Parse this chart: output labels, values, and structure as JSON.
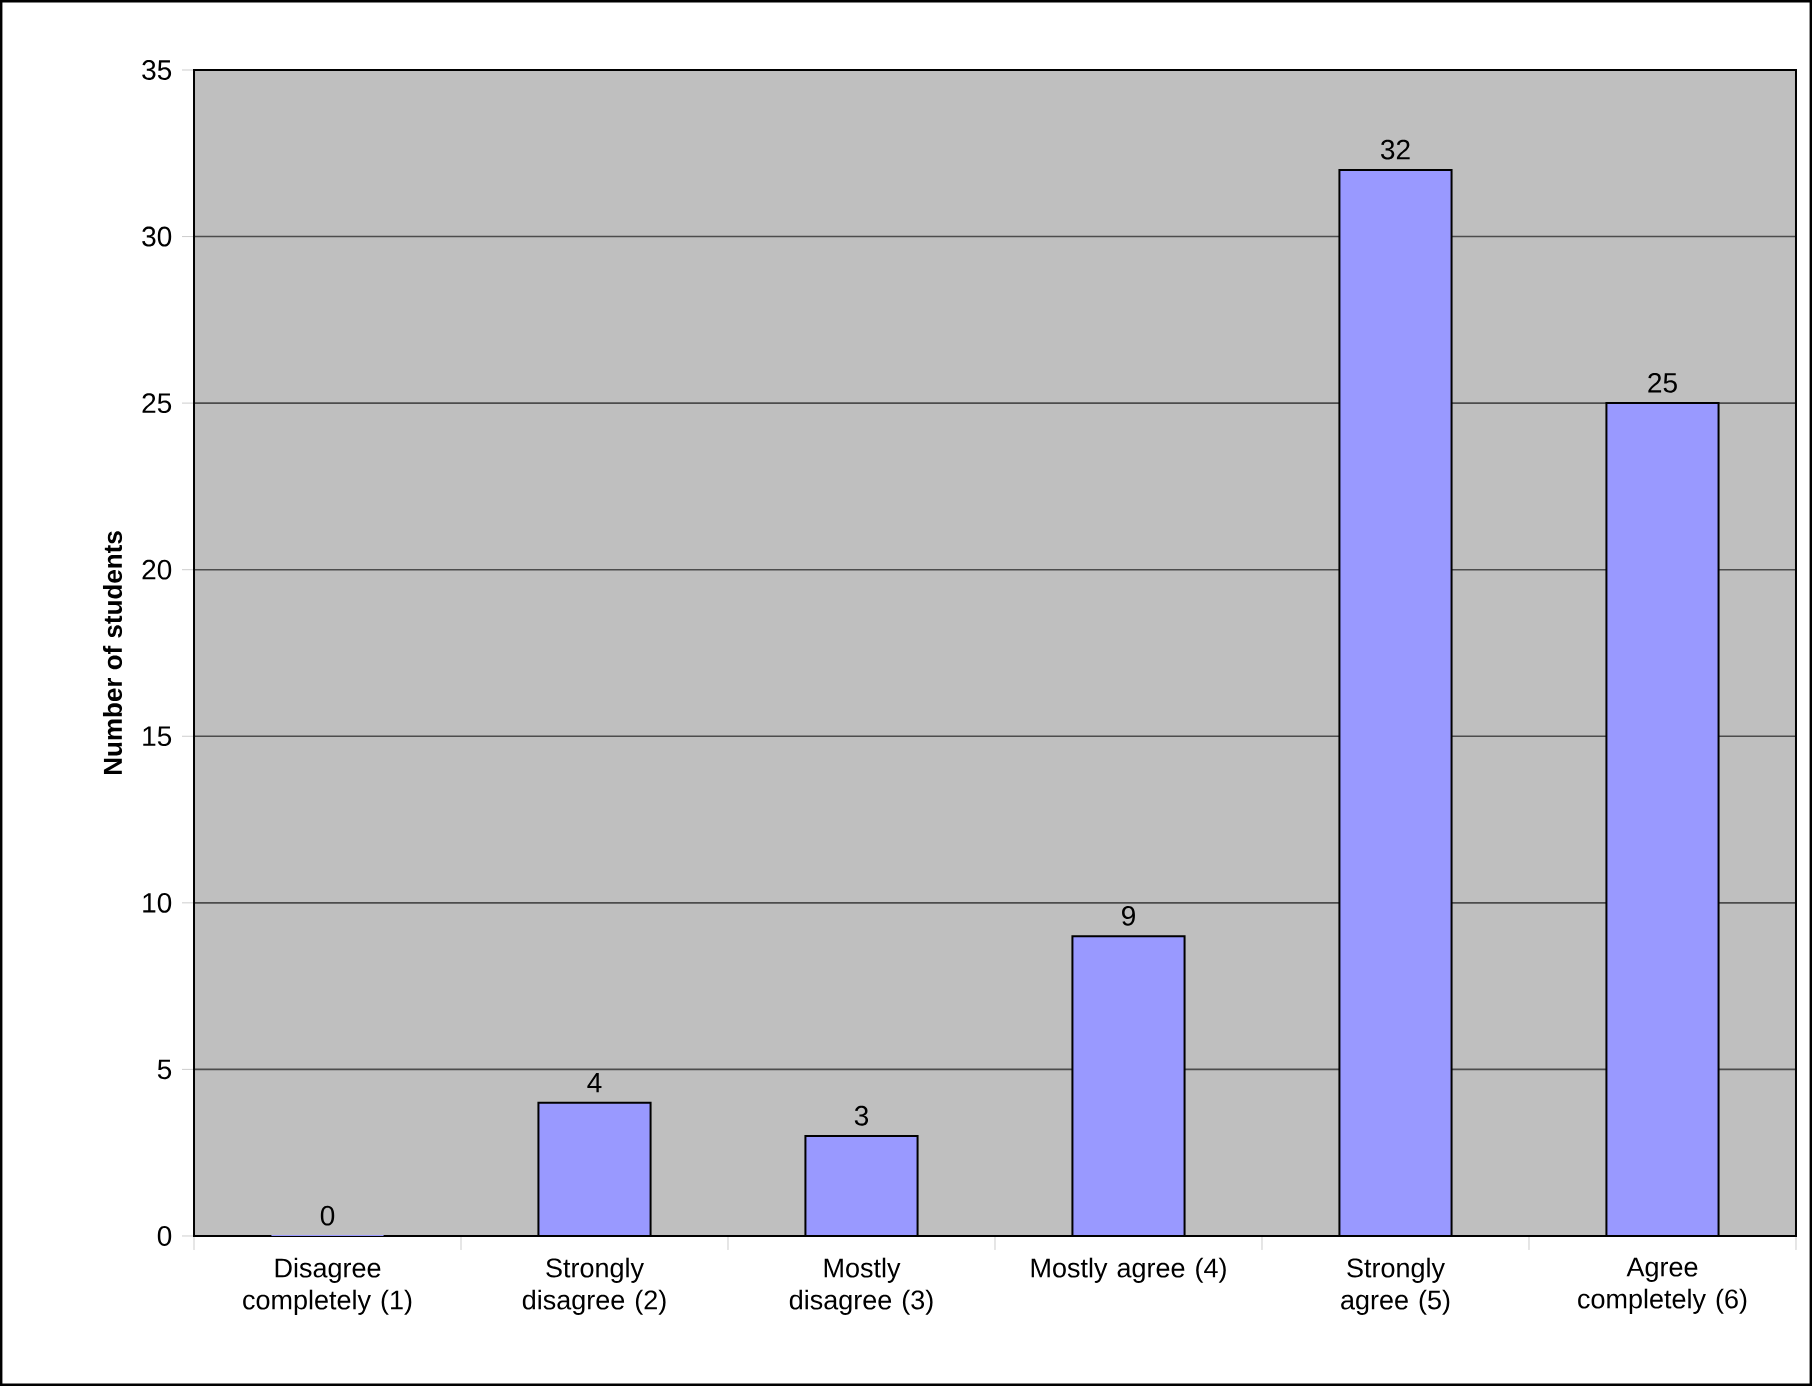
{
  "chart_data": {
    "type": "bar",
    "ylabel": "Number of students",
    "categories": [
      "Disagree completely (1)",
      "Strongly disagree (2)",
      "Mostly disagree (3)",
      "Mostly agree (4)",
      "Strongly agree (5)",
      "Agree completely (6)"
    ],
    "values": [
      0,
      4,
      3,
      9,
      32,
      25
    ],
    "color": "#9999ff",
    "ylim": [
      0,
      35
    ],
    "yticks": [
      0,
      5,
      10,
      15,
      20,
      25,
      30,
      35
    ],
    "grid": "y",
    "data_labels": true
  }
}
